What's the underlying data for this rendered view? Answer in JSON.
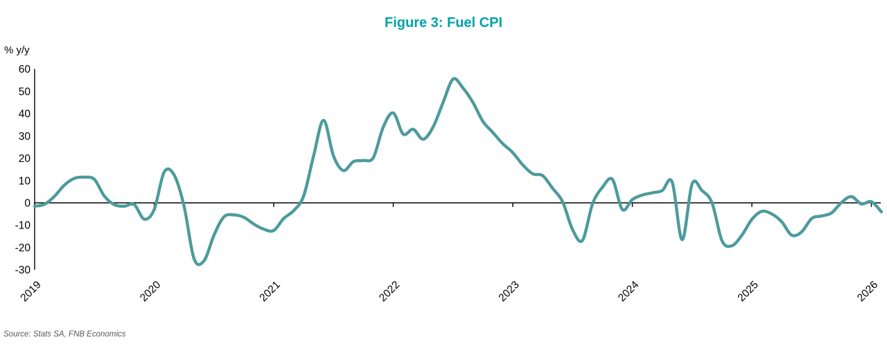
{
  "title": "Figure 3: Fuel CPI",
  "source": "Source: Stats SA, FNB Economics",
  "axis": {
    "y_unit_label": "% y/y",
    "y_ticks": [
      60,
      50,
      40,
      30,
      20,
      10,
      0,
      -10,
      -20,
      -30
    ],
    "x_years": [
      "2019",
      "2020",
      "2021",
      "2022",
      "2023",
      "2024",
      "2025",
      "2026"
    ]
  },
  "colors": {
    "line": "#4D9B9C",
    "title": "#00A3A8",
    "axis": "#000000",
    "source_text": "#595959"
  },
  "chart_data": {
    "type": "line",
    "title": "Figure 3: Fuel CPI",
    "ylabel": "% y/y",
    "ylim": [
      -30,
      60
    ],
    "y_tick_step": 10,
    "grid": false,
    "legend": "none",
    "frequency": "monthly",
    "x_start": "2019-01",
    "x_end": "2026-02",
    "x_tick_labels": [
      "2019",
      "2020",
      "2021",
      "2022",
      "2023",
      "2024",
      "2025",
      "2026"
    ],
    "series": [
      {
        "name": "Fuel CPI % y/y",
        "values": [
          -1.5,
          -0.6,
          3,
          8,
          11,
          11.5,
          10.5,
          3,
          -0.8,
          -1.5,
          -0.8,
          -7.3,
          -3,
          13.8,
          12.5,
          -1.5,
          -25,
          -26,
          -14.5,
          -6.3,
          -5.4,
          -6.5,
          -9.5,
          -11.8,
          -12.4,
          -7,
          -3.5,
          3,
          21,
          37,
          21,
          14.5,
          18.5,
          19,
          20.3,
          34,
          40.3,
          30.8,
          33,
          28.5,
          34,
          45,
          55.5,
          51.5,
          45,
          36.5,
          31.5,
          26.5,
          22.5,
          17,
          13,
          12.2,
          6.5,
          0.5,
          -12,
          -16.8,
          -0.5,
          7,
          10.5,
          -3,
          1.5,
          3.5,
          4.5,
          5.5,
          9.3,
          -16.5,
          8.5,
          5.5,
          0,
          -17,
          -19.2,
          -14.5,
          -7.4,
          -3.8,
          -5,
          -8.5,
          -14.5,
          -13,
          -7,
          -5.9,
          -4.5,
          0.2,
          2.8,
          -0.5,
          0.5,
          -4
        ]
      }
    ]
  }
}
